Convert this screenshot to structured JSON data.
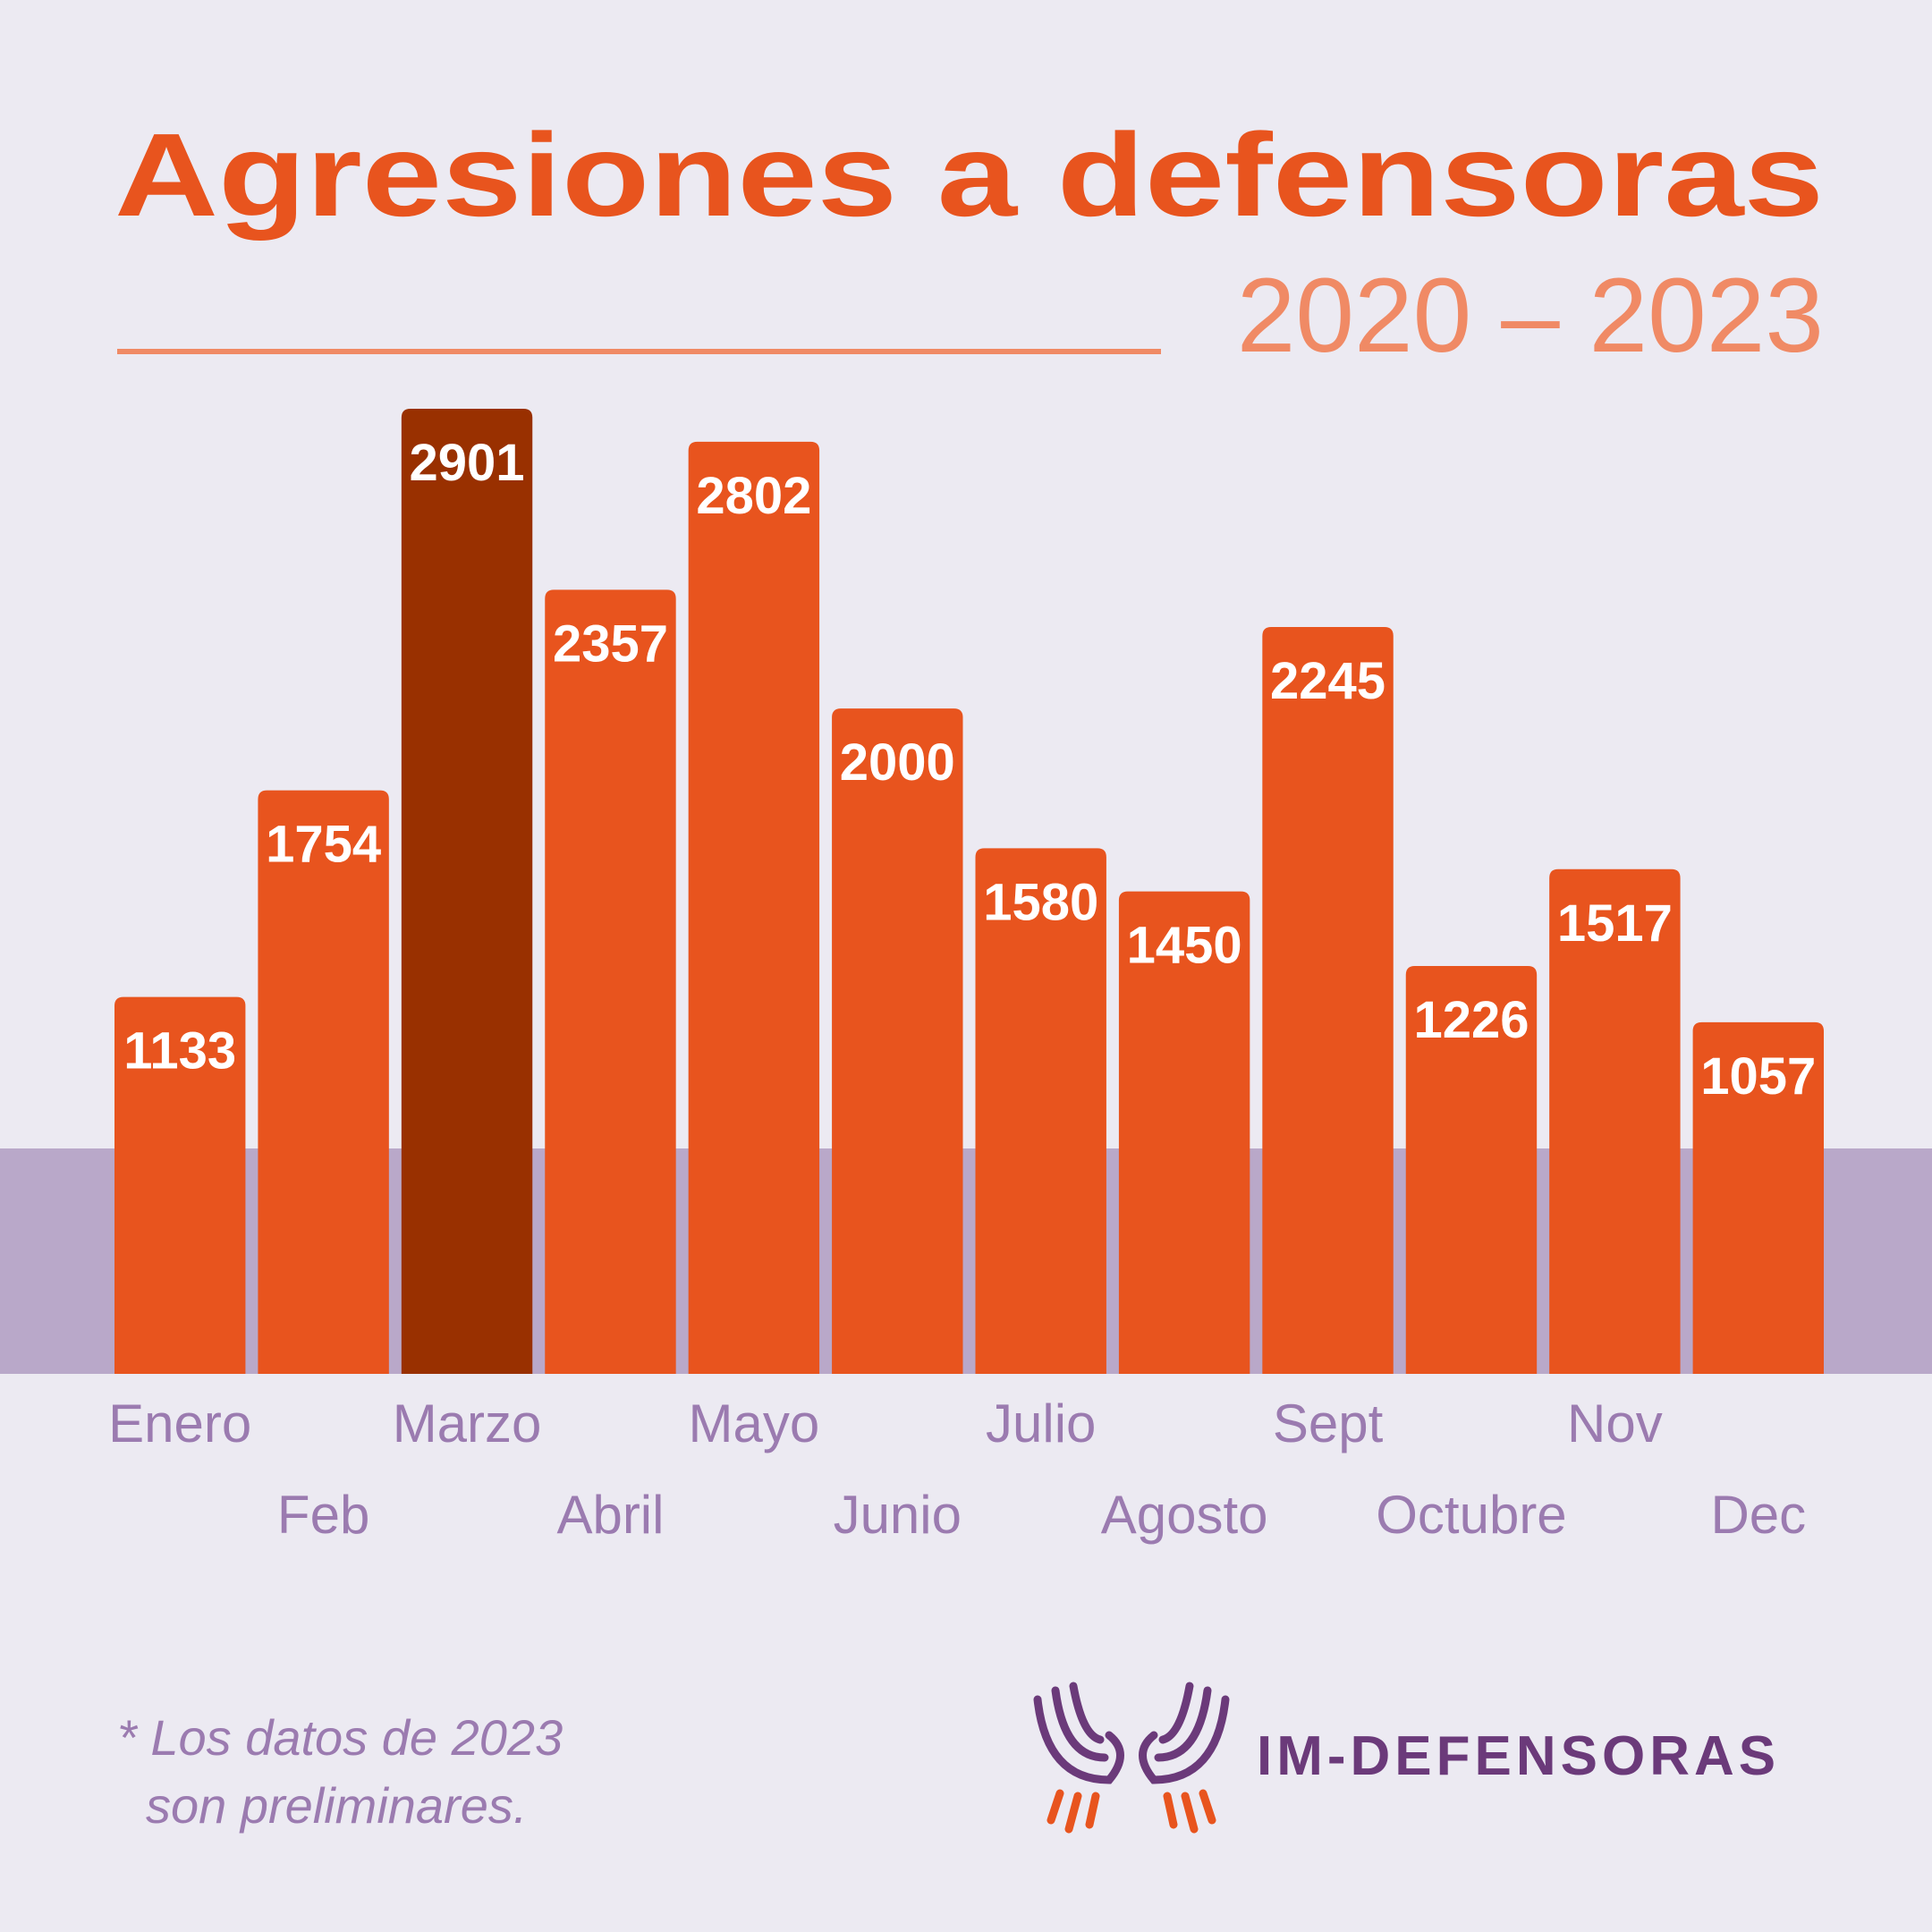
{
  "chart_data": {
    "type": "bar",
    "title": "Agresiones a defensoras",
    "subtitle": "2020 – 2023",
    "categories": [
      "Enero",
      "Feb",
      "Marzo",
      "Abril",
      "Mayo",
      "Junio",
      "Julio",
      "Agosto",
      "Sept",
      "Octubre",
      "Nov",
      "Dec"
    ],
    "values": [
      1133,
      1754,
      2901,
      2357,
      2802,
      2000,
      1580,
      1450,
      2245,
      1226,
      1517,
      1057
    ],
    "colors": [
      "#e8541e",
      "#e8541e",
      "#993000",
      "#e8541e",
      "#e8541e",
      "#e8541e",
      "#e8541e",
      "#e8541e",
      "#e8541e",
      "#e8541e",
      "#e8541e",
      "#e8541e"
    ]
  },
  "footnote": [
    "* Los datos de 2023",
    "son preliminares."
  ],
  "logo": "IM-DEFENSORAS"
}
